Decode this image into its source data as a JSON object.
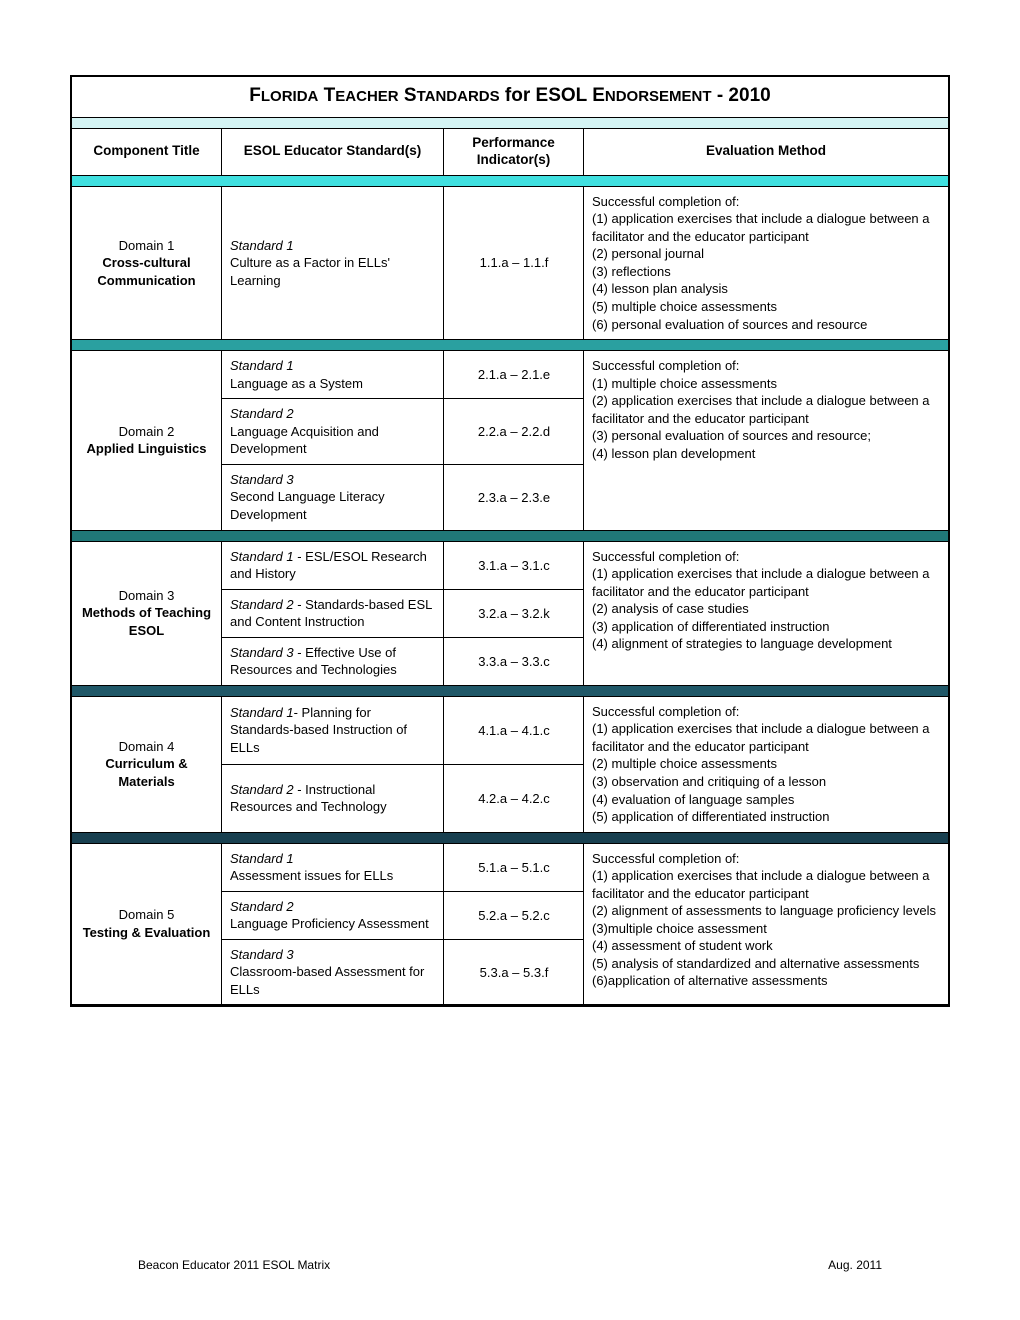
{
  "title_html": "F<span style='font-size:15px'>LORIDA</span> T<span style='font-size:15px'>EACHER</span> S<span style='font-size:15px'>TANDARDS</span> for ESOL E<span style='font-size:15px'>NDORSEMENT</span> - 2010",
  "headers": {
    "col1": "Component Title",
    "col2": "ESOL Educator Standard(s)",
    "col3": "Performance Indicator(s)",
    "col4": "Evaluation Method"
  },
  "separators": [
    "#d4f4f4",
    "#40e0e0",
    "#2aa0a0",
    "#207878",
    "#205868",
    "#184050"
  ],
  "domains": [
    {
      "num": "Domain 1",
      "name": "Cross-cultural Communication",
      "standards": [
        {
          "std_label": "Standard 1",
          "std_desc": "Culture as a Factor in ELLs' Learning",
          "indicator": "1.1.a – 1.1.f"
        }
      ],
      "evaluation": "Successful completion of:\n(1) application exercises that include a dialogue between a facilitator and the educator participant\n(2) personal journal\n(3) reflections\n(4) lesson plan analysis\n(5) multiple choice assessments\n(6) personal evaluation of sources and resource"
    },
    {
      "num": "Domain 2",
      "name": "Applied Linguistics",
      "standards": [
        {
          "std_label": "Standard 1",
          "std_desc": "Language as a System",
          "indicator": "2.1.a – 2.1.e"
        },
        {
          "std_label": "Standard 2",
          "std_desc": "Language Acquisition and Development",
          "indicator": "2.2.a – 2.2.d"
        },
        {
          "std_label": "Standard 3",
          "std_desc": "Second Language Literacy Development",
          "indicator": "2.3.a – 2.3.e"
        }
      ],
      "evaluation": "Successful completion of:\n(1) multiple choice assessments\n(2) application exercises that include a dialogue between a facilitator and the educator participant\n(3) personal evaluation of sources and resource;\n(4) lesson plan development"
    },
    {
      "num": "Domain 3",
      "name": "Methods of Teaching ESOL",
      "standards": [
        {
          "std_label": "Standard 1",
          "std_desc": "ESL/ESOL Research and History",
          "inline": true,
          "indicator": "3.1.a – 3.1.c"
        },
        {
          "std_label": "Standard 2",
          "std_desc": "Standards-based ESL and Content Instruction",
          "inline": true,
          "indicator": "3.2.a – 3.2.k"
        },
        {
          "std_label": "Standard 3",
          "std_desc": "Effective Use of Resources and Technologies",
          "inline": true,
          "indicator": "3.3.a – 3.3.c"
        }
      ],
      "evaluation": "Successful completion of:\n(1) application exercises that include a dialogue between a facilitator and the educator participant\n(2) analysis of case studies\n(3) application of differentiated instruction\n(4) alignment of strategies to language development"
    },
    {
      "num": "Domain 4",
      "name": "Curriculum & Materials",
      "standards": [
        {
          "std_label": "Standard 1",
          "std_desc": "Planning for Standards-based Instruction of ELLs",
          "inline_dash": true,
          "indicator": "4.1.a – 4.1.c"
        },
        {
          "std_label": "Standard 2",
          "std_desc": "Instructional Resources and Technology",
          "inline": true,
          "indicator": "4.2.a – 4.2.c"
        }
      ],
      "evaluation": "Successful completion of:\n(1) application exercises that include a dialogue between a facilitator and the educator participant\n(2) multiple choice assessments\n(3) observation and critiquing of a lesson\n(4) evaluation of language samples\n(5) application of differentiated instruction"
    },
    {
      "num": "Domain 5",
      "name": "Testing & Evaluation",
      "standards": [
        {
          "std_label": "Standard 1",
          "std_desc": "Assessment issues for ELLs",
          "indicator": "5.1.a – 5.1.c"
        },
        {
          "std_label": "Standard 2",
          "std_desc": "Language Proficiency Assessment",
          "indicator": "5.2.a – 5.2.c"
        },
        {
          "std_label": "Standard 3",
          "std_desc": "Classroom-based Assessment for ELLs",
          "indicator": "5.3.a – 5.3.f"
        }
      ],
      "evaluation": "Successful completion of:\n(1) application exercises that include a dialogue between a facilitator and the educator participant\n(2) alignment of assessments to language proficiency levels\n(3)multiple choice assessment\n(4) assessment of student work\n(5) analysis of standardized and alternative assessments\n(6)application of alternative assessments"
    }
  ],
  "footer": {
    "left": "Beacon Educator 2011 ESOL Matrix",
    "right": "Aug. 2011"
  }
}
